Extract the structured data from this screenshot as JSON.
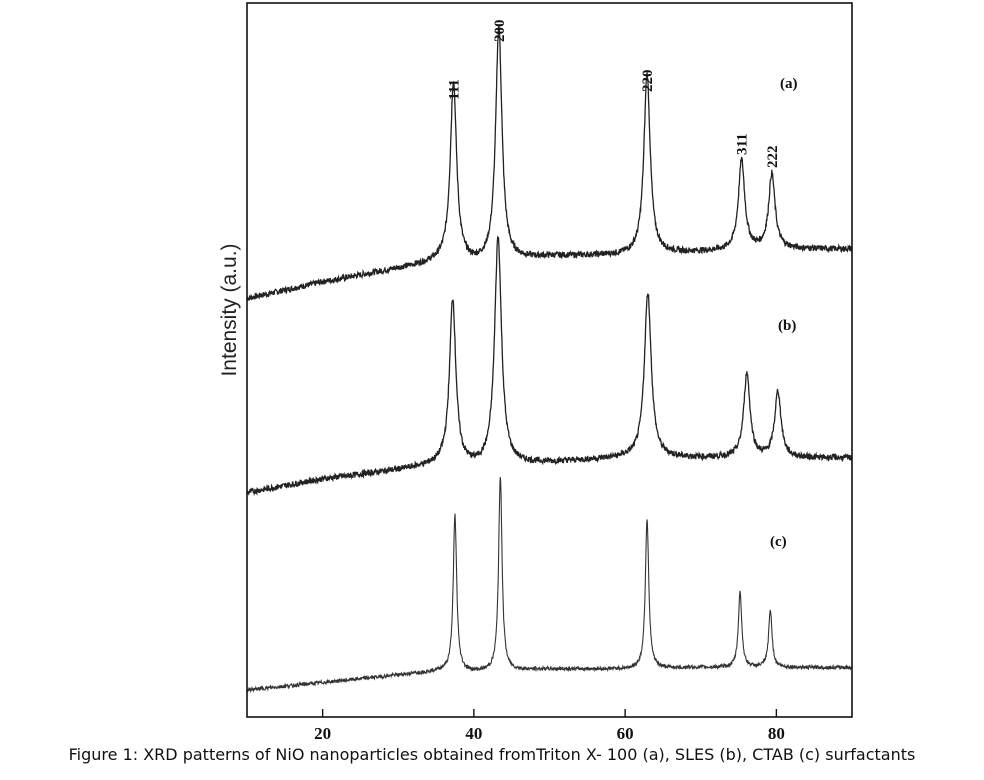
{
  "caption": "Figure 1: XRD patterns of NiO nanoparticles obtained fromTriton X- 100 (a), SLES (b), CTAB (c) surfactants",
  "chart_data": {
    "type": "line",
    "xlabel": "",
    "ylabel": "Intensity (a.u.)",
    "xlim": [
      10,
      90
    ],
    "xticks": [
      20,
      40,
      60,
      80
    ],
    "peak_labels": [
      {
        "text": "111",
        "x": 37.3
      },
      {
        "text": "200",
        "x": 43.3
      },
      {
        "text": "220",
        "x": 62.9
      },
      {
        "text": "311",
        "x": 75.4
      },
      {
        "text": "222",
        "x": 79.4
      }
    ],
    "series": [
      {
        "name": "(a)",
        "baseline": [
          [
            10,
            0.05
          ],
          [
            20,
            0.6
          ],
          [
            30,
            1.05
          ],
          [
            36,
            1.3
          ],
          [
            40,
            1.2
          ],
          [
            50,
            1.45
          ],
          [
            60,
            1.5
          ],
          [
            70,
            1.6
          ],
          [
            80,
            1.7
          ],
          [
            90,
            1.7
          ]
        ],
        "peaks": [
          {
            "x": 37.3,
            "height": 6.0,
            "width": 0.55
          },
          {
            "x": 43.3,
            "height": 7.8,
            "width": 0.55
          },
          {
            "x": 62.9,
            "height": 6.0,
            "width": 0.55
          },
          {
            "x": 75.4,
            "height": 3.0,
            "width": 0.55
          },
          {
            "x": 79.4,
            "height": 2.5,
            "width": 0.55
          }
        ]
      },
      {
        "name": "(b)",
        "baseline": [
          [
            10,
            0.05
          ],
          [
            20,
            0.5
          ],
          [
            30,
            0.8
          ],
          [
            36,
            1.0
          ],
          [
            40,
            0.9
          ],
          [
            50,
            1.05
          ],
          [
            60,
            1.2
          ],
          [
            70,
            1.2
          ],
          [
            80,
            1.2
          ],
          [
            90,
            1.2
          ]
        ],
        "peaks": [
          {
            "x": 37.2,
            "height": 5.5,
            "width": 0.55
          },
          {
            "x": 43.2,
            "height": 7.6,
            "width": 0.6
          },
          {
            "x": 63.0,
            "height": 5.5,
            "width": 0.6
          },
          {
            "x": 76.1,
            "height": 2.8,
            "width": 0.55
          },
          {
            "x": 80.2,
            "height": 2.2,
            "width": 0.55
          }
        ]
      },
      {
        "name": "(c)",
        "baseline": [
          [
            10,
            0.0
          ],
          [
            20,
            0.25
          ],
          [
            30,
            0.5
          ],
          [
            36,
            0.65
          ],
          [
            40,
            0.6
          ],
          [
            50,
            0.7
          ],
          [
            60,
            0.7
          ],
          [
            70,
            0.75
          ],
          [
            80,
            0.75
          ],
          [
            90,
            0.75
          ]
        ],
        "peaks": [
          {
            "x": 37.5,
            "height": 5.2,
            "width": 0.3
          },
          {
            "x": 43.5,
            "height": 6.5,
            "width": 0.3
          },
          {
            "x": 62.9,
            "height": 5.0,
            "width": 0.3
          },
          {
            "x": 75.2,
            "height": 2.5,
            "width": 0.3
          },
          {
            "x": 79.2,
            "height": 1.9,
            "width": 0.3
          }
        ]
      }
    ],
    "grid": false,
    "legend": "none"
  }
}
